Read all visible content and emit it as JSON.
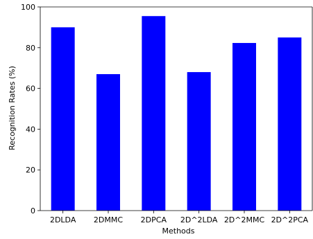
{
  "chart_data": {
    "type": "bar",
    "categories": [
      "2DLDA",
      "2DMMC",
      "2DPCA",
      "2D^2LDA",
      "2D^2MMC",
      "2D^2PCA"
    ],
    "values": [
      90,
      67,
      95.5,
      68,
      82.3,
      85
    ],
    "xlabel": "Methods",
    "ylabel": "Recognition Rates (%)",
    "ylim": [
      0,
      100
    ],
    "yticks": [
      0,
      20,
      40,
      60,
      80,
      100
    ],
    "bar_color": "#0000ff",
    "grid": false
  }
}
